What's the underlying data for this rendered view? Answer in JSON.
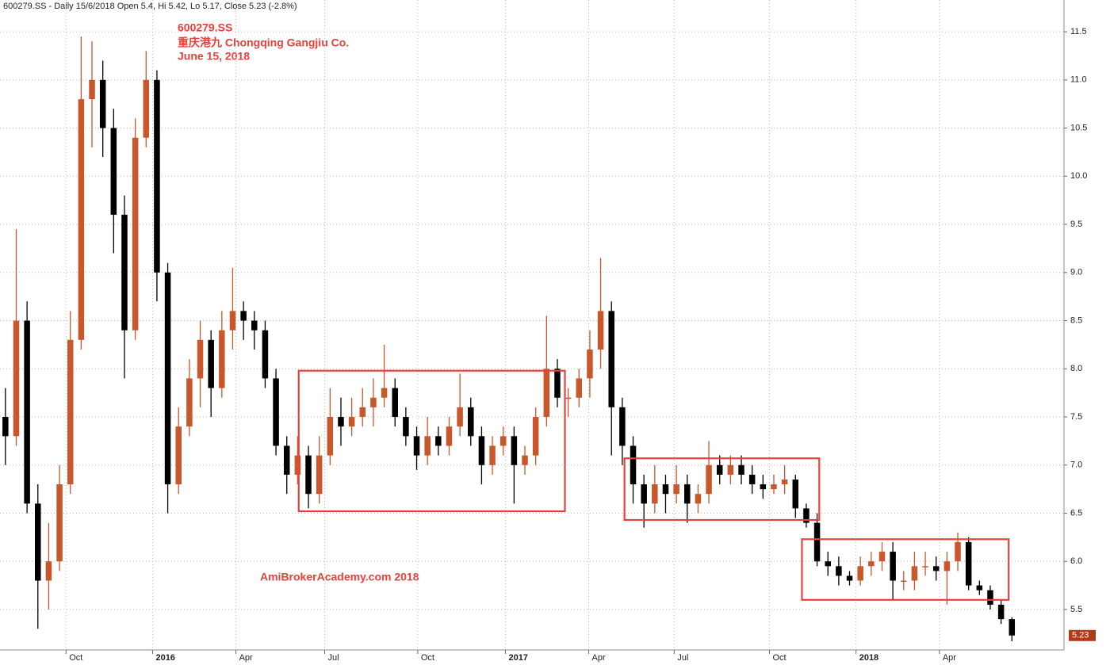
{
  "chart_data": {
    "type": "candlestick",
    "header": "600279.SS - Daily 15/6/2018 Open 5.4, Hi 5.42, Lo 5.17, Close 5.23 (-2.8%)",
    "title": [
      "600279.SS",
      "重庆港九 Chongqing Gangjiu Co.",
      "June 15, 2018"
    ],
    "watermark": "AmiBrokerAcademy.com  2018",
    "up_color": "#c8572b",
    "down_color": "#000000",
    "box_color": "#e8403a",
    "open": [
      7.5,
      7.3,
      8.5,
      6.6,
      5.8,
      6.0,
      6.8,
      8.3,
      10.8,
      11.0,
      10.5,
      9.6,
      8.4,
      10.4,
      11.0,
      9.0,
      6.8,
      7.4,
      7.9,
      8.3,
      7.8,
      8.4,
      8.6,
      8.5,
      8.4,
      7.9,
      7.2,
      6.9,
      7.1,
      6.7,
      7.1,
      7.5,
      7.4,
      7.5,
      7.6,
      7.7,
      7.8,
      7.5,
      7.3,
      7.1,
      7.3,
      7.2,
      7.4,
      7.6,
      7.3,
      7.0,
      7.2,
      7.3,
      7.0,
      7.1,
      7.5,
      8.0,
      7.7,
      7.7,
      7.9,
      8.2,
      8.6,
      7.6,
      7.2,
      6.8,
      6.6,
      6.8,
      6.7,
      6.8,
      6.6,
      6.7,
      7.0,
      6.9,
      7.0,
      6.9,
      6.8,
      6.75,
      6.8,
      6.85,
      6.55,
      6.4,
      6.0,
      5.95,
      5.85,
      5.8,
      5.95,
      6.0,
      6.1,
      5.8,
      5.8,
      5.95,
      5.95,
      5.9,
      6.0,
      6.2,
      5.75,
      5.7,
      5.55,
      5.4
    ],
    "high": [
      7.8,
      9.45,
      8.7,
      6.8,
      6.4,
      7.0,
      8.6,
      11.45,
      11.4,
      11.2,
      10.7,
      9.8,
      10.6,
      11.3,
      11.1,
      9.1,
      7.6,
      8.1,
      8.5,
      8.4,
      8.6,
      9.05,
      8.7,
      8.6,
      8.5,
      8.0,
      7.3,
      7.3,
      7.2,
      7.3,
      7.8,
      7.7,
      7.7,
      7.8,
      7.9,
      8.25,
      7.9,
      7.6,
      7.4,
      7.5,
      7.4,
      7.5,
      7.95,
      7.7,
      7.4,
      7.3,
      7.4,
      7.4,
      7.2,
      7.6,
      8.55,
      8.1,
      7.8,
      8.0,
      8.4,
      9.15,
      8.7,
      7.7,
      7.3,
      6.9,
      7.0,
      6.9,
      7.0,
      6.9,
      6.8,
      7.25,
      7.1,
      7.1,
      7.1,
      7.0,
      6.9,
      6.9,
      7.0,
      6.9,
      6.6,
      6.5,
      6.1,
      6.05,
      5.9,
      6.05,
      6.1,
      6.2,
      6.2,
      5.9,
      6.1,
      6.1,
      6.05,
      6.1,
      6.3,
      6.25,
      5.8,
      5.75,
      5.6,
      5.42
    ],
    "low": [
      7.0,
      7.2,
      6.5,
      5.3,
      5.5,
      5.9,
      6.7,
      8.2,
      10.3,
      10.2,
      9.2,
      7.9,
      8.3,
      10.3,
      8.7,
      6.5,
      6.7,
      7.3,
      7.6,
      7.5,
      7.7,
      8.2,
      8.3,
      8.2,
      7.8,
      7.1,
      6.7,
      6.8,
      6.55,
      6.6,
      7.0,
      7.2,
      7.3,
      7.4,
      7.4,
      7.6,
      7.4,
      7.2,
      6.95,
      7.0,
      7.1,
      7.1,
      7.3,
      7.2,
      6.8,
      6.9,
      7.1,
      6.6,
      6.9,
      7.0,
      7.4,
      7.6,
      7.5,
      7.6,
      7.7,
      8.0,
      7.1,
      7.0,
      6.6,
      6.35,
      6.5,
      6.5,
      6.6,
      6.4,
      6.5,
      6.6,
      6.8,
      6.8,
      6.8,
      6.7,
      6.65,
      6.7,
      6.7,
      6.45,
      6.35,
      5.95,
      5.85,
      5.75,
      5.75,
      5.75,
      5.85,
      5.9,
      5.6,
      5.7,
      5.7,
      5.85,
      5.8,
      5.55,
      5.9,
      5.7,
      5.65,
      5.5,
      5.35,
      5.17
    ],
    "close": [
      7.3,
      8.5,
      6.6,
      5.8,
      6.0,
      6.8,
      8.3,
      10.8,
      11.0,
      10.5,
      9.6,
      8.4,
      10.4,
      11.0,
      9.0,
      6.8,
      7.4,
      7.9,
      8.3,
      7.8,
      8.4,
      8.6,
      8.5,
      8.4,
      7.9,
      7.2,
      6.9,
      7.1,
      6.7,
      7.1,
      7.5,
      7.4,
      7.5,
      7.6,
      7.7,
      7.8,
      7.5,
      7.3,
      7.1,
      7.3,
      7.2,
      7.4,
      7.6,
      7.3,
      7.0,
      7.2,
      7.3,
      7.0,
      7.1,
      7.5,
      8.0,
      7.7,
      7.7,
      7.9,
      8.2,
      8.6,
      7.6,
      7.2,
      6.8,
      6.6,
      6.8,
      6.7,
      6.8,
      6.6,
      6.7,
      7.0,
      6.9,
      7.0,
      6.9,
      6.8,
      6.75,
      6.8,
      6.85,
      6.55,
      6.4,
      6.0,
      5.95,
      5.85,
      5.8,
      5.95,
      6.0,
      6.1,
      5.8,
      5.8,
      5.95,
      5.95,
      5.9,
      6.0,
      6.2,
      5.75,
      5.7,
      5.55,
      5.4,
      5.23
    ],
    "boxes": [
      {
        "x": [
          27.6,
          52.2
        ],
        "y": [
          6.52,
          7.98
        ]
      },
      {
        "x": [
          57.7,
          75.7
        ],
        "y": [
          6.43,
          7.07
        ]
      },
      {
        "x": [
          74.1,
          93.2
        ],
        "y": [
          5.6,
          6.23
        ]
      }
    ],
    "xlim": [
      0,
      100
    ],
    "xticks": [
      {
        "value": 6.1,
        "label": "Oct"
      },
      {
        "value": 14.1,
        "label": "2016"
      },
      {
        "value": 21.8,
        "label": "Apr"
      },
      {
        "value": 30.0,
        "label": "Jul"
      },
      {
        "value": 38.6,
        "label": "Oct"
      },
      {
        "value": 46.7,
        "label": "2017"
      },
      {
        "value": 54.4,
        "label": "Apr"
      },
      {
        "value": 62.3,
        "label": "Jul"
      },
      {
        "value": 71.1,
        "label": "Oct"
      },
      {
        "value": 79.1,
        "label": "2018"
      },
      {
        "value": 86.8,
        "label": "Apr"
      }
    ],
    "ylim": [
      5.08,
      11.83
    ],
    "yticks": [
      5.5,
      {
        "value": 6,
        "label": "6.0"
      },
      6.5,
      {
        "value": 7,
        "label": "7.0"
      },
      7.5,
      {
        "value": 8,
        "label": "8.0"
      },
      8.5,
      {
        "value": 9,
        "label": "9.0"
      },
      9.5,
      {
        "value": 10,
        "label": "10.0"
      },
      10.5,
      {
        "value": 11,
        "label": "11.0"
      },
      11.5
    ],
    "grid": true
  }
}
